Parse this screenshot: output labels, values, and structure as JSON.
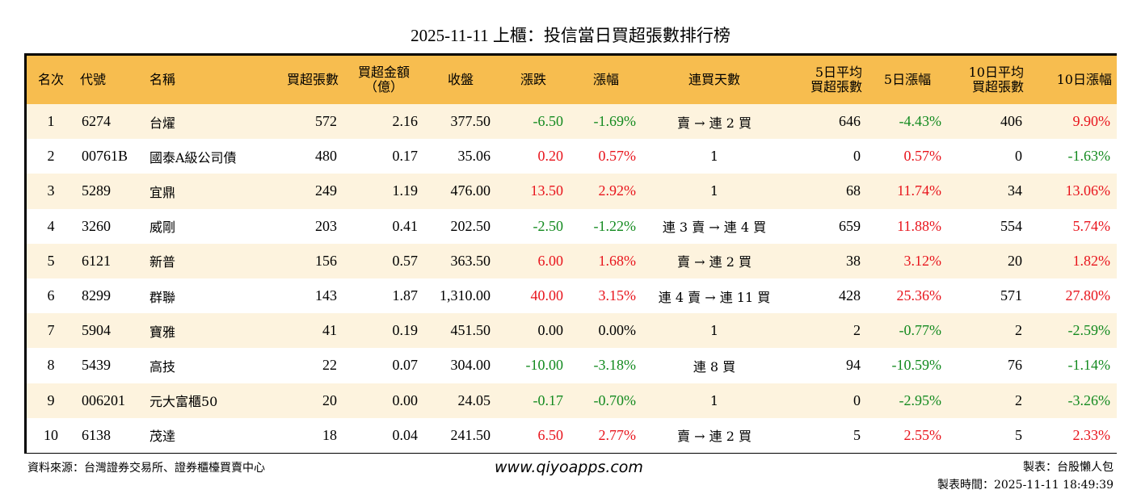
{
  "title": "2025-11-11 上櫃：投信當日買超張數排行榜",
  "header": {
    "rank": "名次",
    "code": "代號",
    "name": "名稱",
    "net_buy_lots": "買超張數",
    "net_buy_amount_line1": "買超金額",
    "net_buy_amount_line2": "（億）",
    "close": "收盤",
    "change": "漲跌",
    "change_pct": "漲幅",
    "streak": "連買天數",
    "avg5_line1": "5日平均",
    "avg5_line2": "買超張數",
    "pct5": "5日漲幅",
    "avg10_line1": "10日平均",
    "avg10_line2": "買超張數",
    "pct10": "10日漲幅"
  },
  "colors": {
    "header_bg": "#f7bd4f",
    "row_alt_bg": "#fdf3de",
    "up": "#e8141c",
    "down": "#138a1f"
  },
  "rows": [
    {
      "rank": "1",
      "code": "6274",
      "name": "台燿",
      "lots": "572",
      "amount": "2.16",
      "close": "377.50",
      "change": "-6.50",
      "change_pct": "-1.69%",
      "streak": "賣 → 連 2 買",
      "avg5": "646",
      "pct5": "-4.43%",
      "avg10": "406",
      "pct10": "9.90%"
    },
    {
      "rank": "2",
      "code": "00761B",
      "name": "國泰A級公司債",
      "lots": "480",
      "amount": "0.17",
      "close": "35.06",
      "change": "0.20",
      "change_pct": "0.57%",
      "streak": "1",
      "avg5": "0",
      "pct5": "0.57%",
      "avg10": "0",
      "pct10": "-1.63%"
    },
    {
      "rank": "3",
      "code": "5289",
      "name": "宜鼎",
      "lots": "249",
      "amount": "1.19",
      "close": "476.00",
      "change": "13.50",
      "change_pct": "2.92%",
      "streak": "1",
      "avg5": "68",
      "pct5": "11.74%",
      "avg10": "34",
      "pct10": "13.06%"
    },
    {
      "rank": "4",
      "code": "3260",
      "name": "威剛",
      "lots": "203",
      "amount": "0.41",
      "close": "202.50",
      "change": "-2.50",
      "change_pct": "-1.22%",
      "streak": "連 3 賣 → 連 4 買",
      "avg5": "659",
      "pct5": "11.88%",
      "avg10": "554",
      "pct10": "5.74%"
    },
    {
      "rank": "5",
      "code": "6121",
      "name": "新普",
      "lots": "156",
      "amount": "0.57",
      "close": "363.50",
      "change": "6.00",
      "change_pct": "1.68%",
      "streak": "賣 → 連 2 買",
      "avg5": "38",
      "pct5": "3.12%",
      "avg10": "20",
      "pct10": "1.82%"
    },
    {
      "rank": "6",
      "code": "8299",
      "name": "群聯",
      "lots": "143",
      "amount": "1.87",
      "close": "1,310.00",
      "change": "40.00",
      "change_pct": "3.15%",
      "streak": "連 4 賣 → 連 11 買",
      "avg5": "428",
      "pct5": "25.36%",
      "avg10": "571",
      "pct10": "27.80%"
    },
    {
      "rank": "7",
      "code": "5904",
      "name": "寶雅",
      "lots": "41",
      "amount": "0.19",
      "close": "451.50",
      "change": "0.00",
      "change_pct": "0.00%",
      "streak": "1",
      "avg5": "2",
      "pct5": "-0.77%",
      "avg10": "2",
      "pct10": "-2.59%"
    },
    {
      "rank": "8",
      "code": "5439",
      "name": "高技",
      "lots": "22",
      "amount": "0.07",
      "close": "304.00",
      "change": "-10.00",
      "change_pct": "-3.18%",
      "streak": "連 8 買",
      "avg5": "94",
      "pct5": "-10.59%",
      "avg10": "76",
      "pct10": "-1.14%"
    },
    {
      "rank": "9",
      "code": "006201",
      "name": "元大富櫃50",
      "lots": "20",
      "amount": "0.00",
      "close": "24.05",
      "change": "-0.17",
      "change_pct": "-0.70%",
      "streak": "1",
      "avg5": "0",
      "pct5": "-2.95%",
      "avg10": "2",
      "pct10": "-3.26%"
    },
    {
      "rank": "10",
      "code": "6138",
      "name": "茂達",
      "lots": "18",
      "amount": "0.04",
      "close": "241.50",
      "change": "6.50",
      "change_pct": "2.77%",
      "streak": "賣 → 連 2 買",
      "avg5": "5",
      "pct5": "2.55%",
      "avg10": "5",
      "pct10": "2.33%"
    }
  ],
  "footer": {
    "source": "資料來源：台灣證券交易所、證券櫃檯買賣中心",
    "website": "www.qiyoapps.com",
    "maker": "製表：台股懶人包",
    "made_time": "製表時間：2025-11-11 18:49:39"
  }
}
